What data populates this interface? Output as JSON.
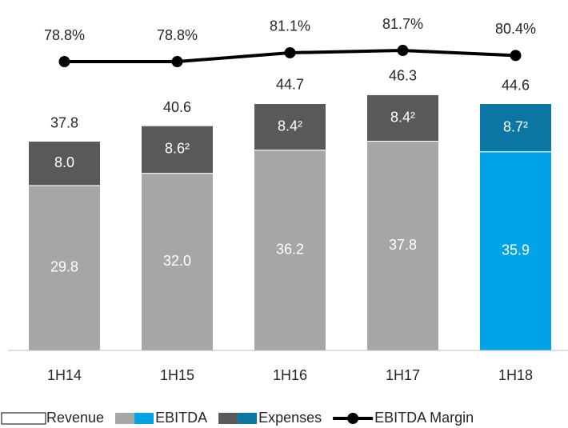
{
  "chart_data": {
    "type": "bar",
    "stacked": true,
    "categories": [
      "1H14",
      "1H15",
      "1H16",
      "1H17",
      "1H18"
    ],
    "ylim": [
      0,
      60
    ],
    "y2lim": [
      4,
      90
    ],
    "series": [
      {
        "name": "Revenue",
        "color": "#ffffff",
        "values": [
          37.8,
          40.6,
          44.7,
          46.3,
          44.6
        ],
        "role": "total"
      },
      {
        "name": "EBITDA",
        "colors": [
          "#a6a6a6",
          "#a6a6a6",
          "#a6a6a6",
          "#a6a6a6",
          "#00a3e6"
        ],
        "values": [
          29.8,
          32.0,
          36.2,
          37.8,
          35.9
        ],
        "value_labels": [
          "29.8",
          "32.0",
          "36.2",
          "37.8",
          "35.9"
        ]
      },
      {
        "name": "Expenses",
        "colors": [
          "#595959",
          "#595959",
          "#595959",
          "#595959",
          "#0b76a3"
        ],
        "values": [
          8.0,
          8.6,
          8.4,
          8.4,
          8.7
        ],
        "value_labels": [
          "8.0",
          "8.6²",
          "8.4²",
          "8.4²",
          "8.7²"
        ]
      },
      {
        "name": "EBITDA Margin",
        "type": "line",
        "axis": "y2",
        "color": "#000000",
        "values": [
          78.8,
          78.8,
          81.1,
          81.7,
          80.4
        ],
        "value_labels": [
          "78.8%",
          "78.8%",
          "81.1%",
          "81.7%",
          "80.4%"
        ]
      }
    ]
  }
}
